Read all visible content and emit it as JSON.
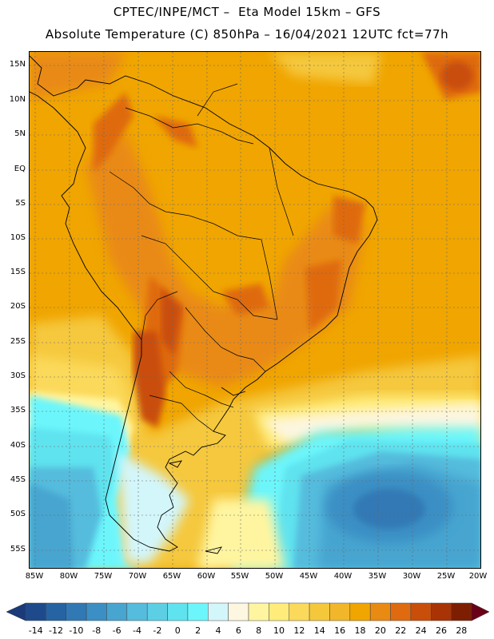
{
  "title_line1": "CPTEC/INPE/MCT –  Eta Model 15km – GFS",
  "title_line2": "Absolute Temperature (C) 850hPa – 16/04/2021 12UTC fct=77h",
  "lat_labels": [
    "15N",
    "10N",
    "5N",
    "EQ",
    "5S",
    "10S",
    "15S",
    "20S",
    "25S",
    "30S",
    "35S",
    "40S",
    "45S",
    "50S",
    "55S"
  ],
  "lon_labels": [
    "85W",
    "80W",
    "75W",
    "70W",
    "65W",
    "60W",
    "55W",
    "50W",
    "45W",
    "40W",
    "35W",
    "30W",
    "25W",
    "20W"
  ],
  "colorbar": {
    "labels": [
      "-14",
      "-12",
      "-10",
      "-8",
      "-6",
      "-4",
      "-2",
      "0",
      "2",
      "4",
      "6",
      "8",
      "10",
      "12",
      "14",
      "16",
      "18",
      "20",
      "22",
      "24",
      "26",
      "28"
    ],
    "colors": [
      "#1e4a8c",
      "#2663a3",
      "#3079b5",
      "#3b8fc4",
      "#47a5d0",
      "#55bcdd",
      "#5ccfe5",
      "#5fe3ef",
      "#6cf6fb",
      "#d3f6fb",
      "#fdf6e0",
      "#fff5a0",
      "#ffec7a",
      "#fbd95a",
      "#f5c83c",
      "#f2b62a",
      "#f0a500",
      "#e98a13",
      "#df6a10",
      "#c94e0a",
      "#a93305",
      "#7d1e03"
    ],
    "under_color": "#1a3a7a",
    "over_color": "#6a0018"
  }
}
